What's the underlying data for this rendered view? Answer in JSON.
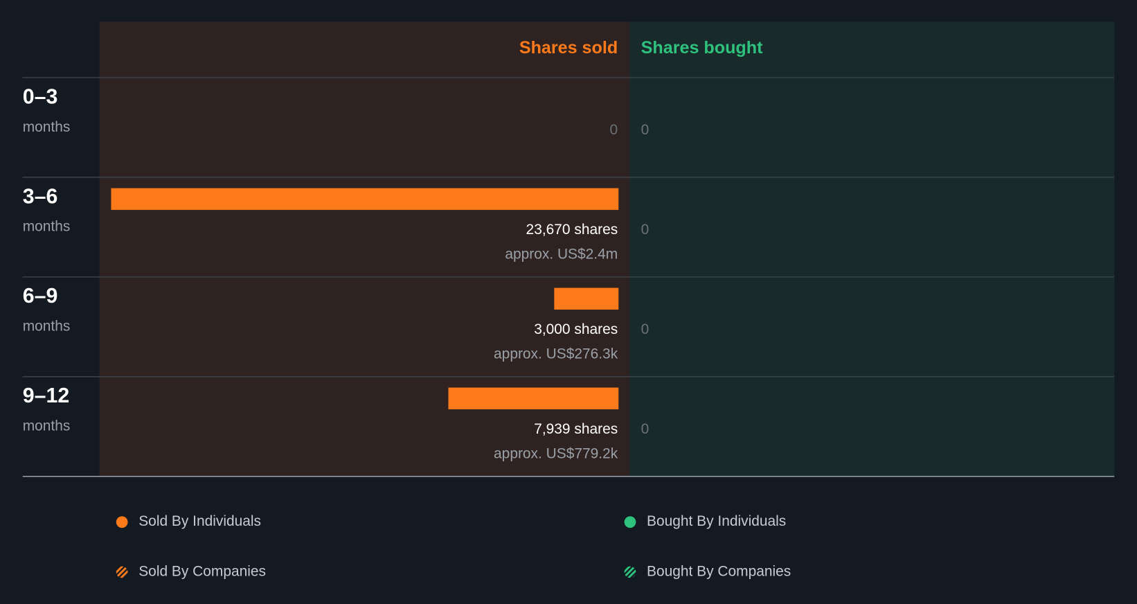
{
  "chart_data": {
    "type": "bar",
    "categories": [
      "0–3",
      "3–6",
      "6–9",
      "9–12"
    ],
    "category_sublabel": "months",
    "series": [
      {
        "name": "Shares sold",
        "color": "#ff7a1a",
        "panel_color": "#2f2321",
        "values": [
          0,
          23670,
          3000,
          7939
        ],
        "value_labels": [
          "0",
          "23,670 shares",
          "3,000 shares",
          "7,939 shares"
        ],
        "notes": [
          null,
          "approx. US$2.4m",
          "approx. US$276.3k",
          "approx. US$779.2k"
        ]
      },
      {
        "name": "Shares bought",
        "color": "#2ec27e",
        "panel_color": "#182b2a",
        "values": [
          0,
          0,
          0,
          0
        ],
        "value_labels": [
          "0",
          "0",
          "0",
          "0"
        ],
        "notes": [
          null,
          null,
          null,
          null
        ]
      }
    ],
    "legend": [
      {
        "name": "Sold By Individuals",
        "color": "#ff7a1a",
        "pattern": "solid"
      },
      {
        "name": "Bought By Individuals",
        "color": "#2ec27e",
        "pattern": "solid"
      },
      {
        "name": "Sold By Companies",
        "color": "#ff7a1a",
        "pattern": "hatched"
      },
      {
        "name": "Bought By Companies",
        "color": "#2ec27e",
        "pattern": "hatched"
      }
    ]
  }
}
